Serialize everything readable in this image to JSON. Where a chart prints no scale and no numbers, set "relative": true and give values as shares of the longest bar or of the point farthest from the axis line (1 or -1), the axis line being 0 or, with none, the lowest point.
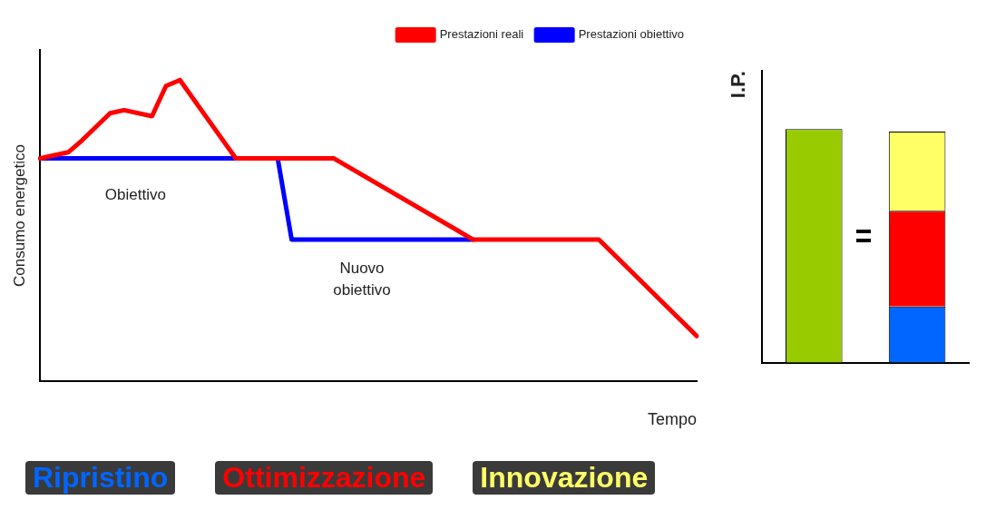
{
  "chart_data": [
    {
      "type": "line",
      "relative": true,
      "xlabel": "Tempo",
      "ylabel": "Consumo energetico",
      "legend": "top right",
      "marker": "none",
      "categories": [
        null,
        null,
        null,
        null,
        null,
        null,
        null,
        null,
        null,
        null,
        null,
        null,
        null,
        null,
        null,
        null,
        null,
        null,
        null,
        null,
        null,
        null,
        null,
        null,
        null,
        null,
        null,
        null,
        null,
        null,
        null,
        null,
        null,
        null,
        null,
        null,
        null,
        null,
        null,
        null,
        null,
        null,
        null,
        null,
        null,
        null,
        null,
        null
      ],
      "series": [
        {
          "name": "Prestazioni reali",
          "color": "#ff0000",
          "values": [
            0.74,
            null,
            0.76,
            0.8,
            null,
            0.89,
            0.9,
            null,
            0.88,
            0.98,
            1,
            null,
            null,
            null,
            0.74,
            null,
            null,
            null,
            null,
            null,
            null,
            0.74,
            null,
            null,
            null,
            null,
            null,
            null,
            null,
            null,
            null,
            0.47,
            null,
            null,
            null,
            null,
            null,
            null,
            null,
            null,
            0.47,
            null,
            null,
            null,
            null,
            null,
            null,
            0.15
          ]
        },
        {
          "name": "Prestazioni obiettivo",
          "color": "#0000ff",
          "values": [
            0.74,
            null,
            null,
            null,
            null,
            null,
            null,
            null,
            null,
            null,
            null,
            null,
            null,
            null,
            null,
            null,
            null,
            0.74,
            0.47,
            null,
            null,
            null,
            null,
            null,
            null,
            null,
            null,
            null,
            null,
            null,
            null,
            0.47,
            null,
            null,
            null,
            null,
            null,
            null,
            null,
            null,
            null,
            null,
            null,
            null,
            null,
            null,
            null,
            null
          ]
        }
      ],
      "annotations": [
        "Obiettivo",
        "Nuovo obiettivo"
      ]
    },
    {
      "type": "bar",
      "relative": true,
      "stacked": true,
      "ylabel": "I.P.",
      "legend": "bottom",
      "categories": [
        null,
        null
      ],
      "series": [
        {
          "color": "#99cc00",
          "values": [
            1,
            null
          ]
        },
        {
          "name": "Ripristino",
          "color": "#0066ff",
          "values": [
            null,
            0.24
          ]
        },
        {
          "name": "Ottimizzazione",
          "color": "#ff0000",
          "values": [
            null,
            0.41
          ]
        },
        {
          "name": "Innovazione",
          "color": "#ffff66",
          "values": [
            null,
            0.34
          ]
        }
      ]
    }
  ]
}
